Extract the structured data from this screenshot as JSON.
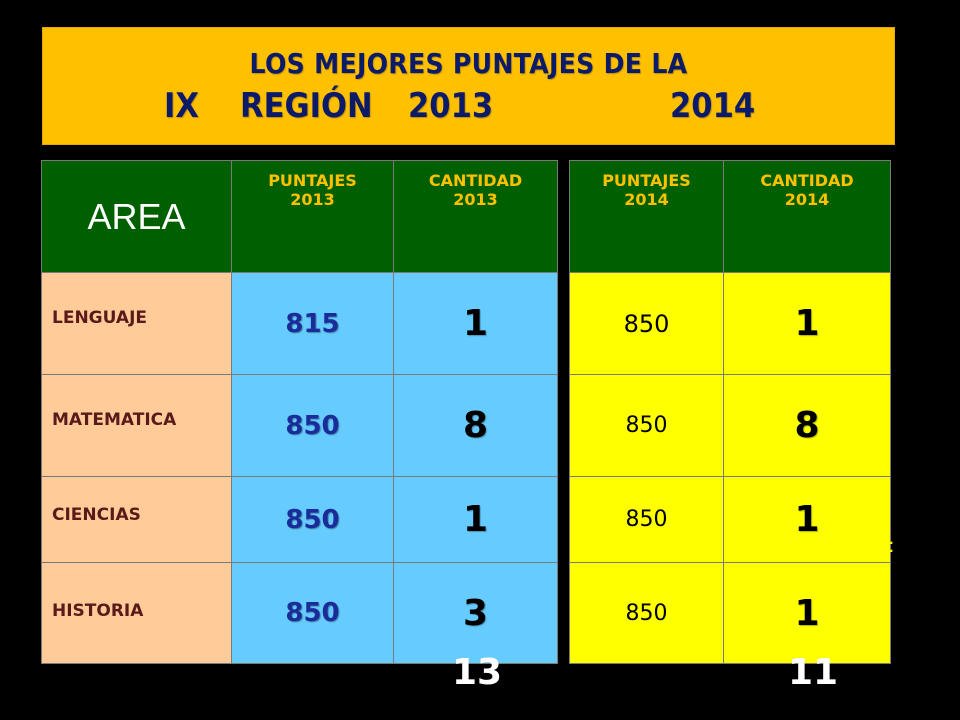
{
  "title": {
    "line1": "LOS  MEJORES PUNTAJES DE  LA",
    "line2_a": "IX",
    "line2_b": "REGIÓN",
    "line2_c": "2013",
    "line2_d": "2014",
    "bg_color": "#ffc000",
    "text_color": "#0c1a6a"
  },
  "table2013": {
    "headers": {
      "area": "AREA",
      "puntajes_1": "PUNTAJES",
      "puntajes_2": "2013",
      "cantidad_1": "CANTIDAD",
      "cantidad_2": "2013"
    },
    "rows": [
      {
        "area": "LENGUAJE",
        "puntaje": "815",
        "cantidad": "1"
      },
      {
        "area": "MATEMATICA",
        "puntaje": "850",
        "cantidad": "8"
      },
      {
        "area": "CIENCIAS",
        "puntaje": "850",
        "cantidad": "1"
      },
      {
        "area": "HISTORIA",
        "puntaje": "850",
        "cantidad": "3"
      }
    ],
    "total": "13"
  },
  "table2014": {
    "headers": {
      "puntajes_1": "PUNTAJES",
      "puntajes_2": "2014",
      "cantidad_1": "CANTIDAD",
      "cantidad_2": "2014"
    },
    "rows": [
      {
        "puntaje": "850",
        "cantidad": "1"
      },
      {
        "puntaje": "850",
        "cantidad": "8"
      },
      {
        "puntaje": "850",
        "cantidad": "1"
      },
      {
        "puntaje": "850",
        "cantidad": "1"
      }
    ],
    "total": "11"
  },
  "colors": {
    "header_green": "#006000",
    "header_text": "#ffc000",
    "area_peach": "#ffcc99",
    "blue_cells": "#66ccff",
    "yellow_cells": "#ffff00"
  }
}
